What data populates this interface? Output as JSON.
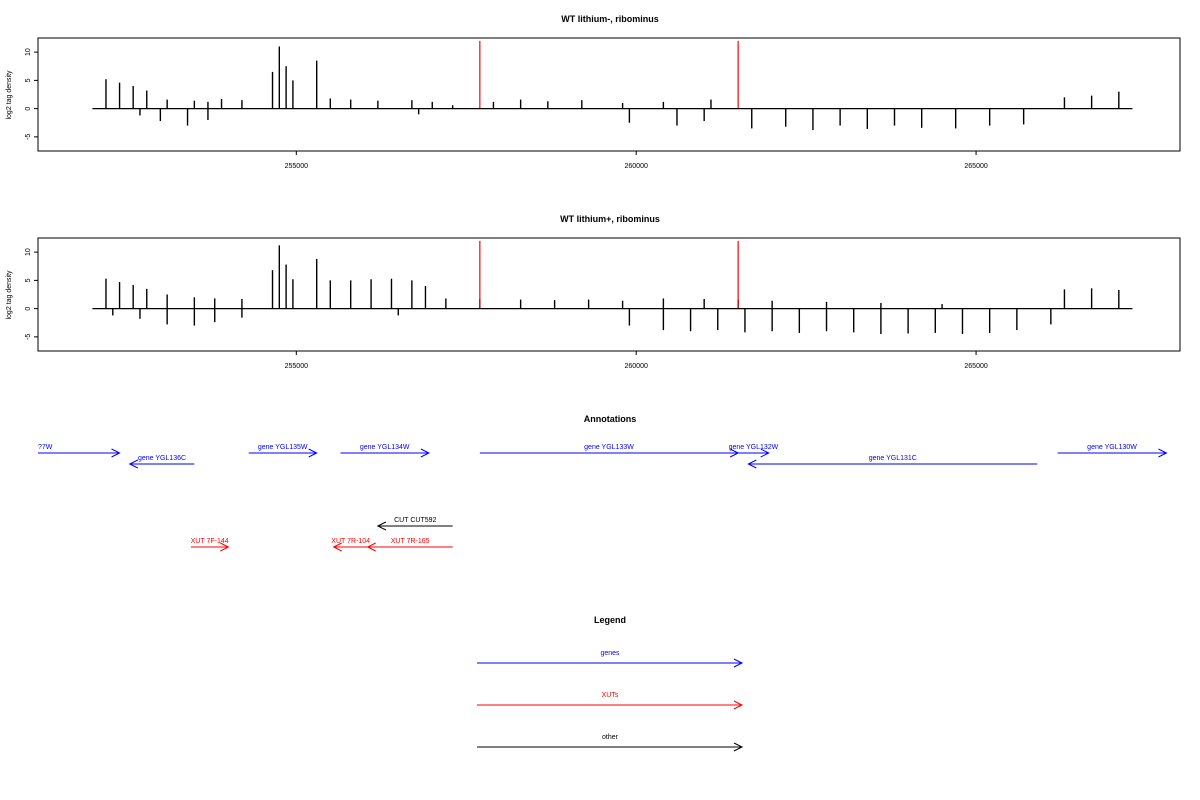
{
  "chart_data": [
    {
      "type": "bar",
      "title": "WT lithium-, ribominus",
      "xlabel": "",
      "ylabel": "log2 tag density",
      "xlim": [
        251200,
        268000
      ],
      "ylim": [
        -7.5,
        12.5
      ],
      "xticks": [
        255000,
        260000,
        265000
      ],
      "xtick_labels": [
        "255000",
        "260000",
        "265000"
      ],
      "yticks": [
        -5,
        0,
        5,
        10
      ],
      "ytick_labels": [
        "-5",
        "0",
        "5",
        "10"
      ],
      "marker_lines_x": [
        257700,
        261500
      ],
      "series": [
        {
          "values": [
            [
              252200,
              5.2
            ],
            [
              252400,
              4.6
            ],
            [
              252600,
              4.0
            ],
            [
              252800,
              3.2
            ],
            [
              253100,
              1.6
            ],
            [
              253500,
              1.4
            ],
            [
              253700,
              1.2
            ],
            [
              253900,
              1.7
            ],
            [
              254200,
              1.5
            ],
            [
              254650,
              6.5
            ],
            [
              254750,
              11.0
            ],
            [
              254850,
              7.5
            ],
            [
              254950,
              5.0
            ],
            [
              255300,
              8.5
            ],
            [
              255500,
              1.8
            ],
            [
              255800,
              1.6
            ],
            [
              256200,
              1.4
            ],
            [
              256700,
              1.5
            ],
            [
              257000,
              1.2
            ],
            [
              257300,
              0.6
            ],
            [
              257900,
              1.2
            ],
            [
              258300,
              1.6
            ],
            [
              258700,
              1.3
            ],
            [
              259200,
              1.5
            ],
            [
              259800,
              1.0
            ],
            [
              260400,
              1.2
            ],
            [
              261100,
              1.6
            ],
            [
              266300,
              2.0
            ],
            [
              266700,
              2.3
            ],
            [
              267100,
              3.0
            ],
            [
              252700,
              -1.2
            ],
            [
              253000,
              -2.2
            ],
            [
              253400,
              -3.0
            ],
            [
              253700,
              -2.0
            ],
            [
              256800,
              -1.0
            ],
            [
              259900,
              -2.5
            ],
            [
              260600,
              -3.0
            ],
            [
              261000,
              -2.2
            ],
            [
              261700,
              -3.5
            ],
            [
              262200,
              -3.2
            ],
            [
              262600,
              -3.8
            ],
            [
              263000,
              -3.0
            ],
            [
              263400,
              -3.6
            ],
            [
              263800,
              -3.0
            ],
            [
              264200,
              -3.4
            ],
            [
              264700,
              -3.5
            ],
            [
              265200,
              -3.0
            ],
            [
              265700,
              -2.8
            ]
          ]
        }
      ]
    },
    {
      "type": "bar",
      "title": "WT lithium+, ribominus",
      "xlabel": "",
      "ylabel": "log2 tag density",
      "xlim": [
        251200,
        268000
      ],
      "ylim": [
        -7.5,
        12.5
      ],
      "xticks": [
        255000,
        260000,
        265000
      ],
      "xtick_labels": [
        "255000",
        "260000",
        "265000"
      ],
      "yticks": [
        -5,
        0,
        5,
        10
      ],
      "ytick_labels": [
        "-5",
        "0",
        "5",
        "10"
      ],
      "marker_lines_x": [
        257700,
        261500
      ],
      "series": [
        {
          "values": [
            [
              252200,
              5.3
            ],
            [
              252400,
              4.7
            ],
            [
              252600,
              4.2
            ],
            [
              252800,
              3.5
            ],
            [
              253100,
              2.5
            ],
            [
              253500,
              2.0
            ],
            [
              253800,
              1.8
            ],
            [
              254200,
              1.7
            ],
            [
              254650,
              6.8
            ],
            [
              254750,
              11.2
            ],
            [
              254850,
              7.8
            ],
            [
              254950,
              5.2
            ],
            [
              255300,
              8.8
            ],
            [
              255500,
              5.0
            ],
            [
              255800,
              5.0
            ],
            [
              256100,
              5.2
            ],
            [
              256400,
              5.3
            ],
            [
              256700,
              5.0
            ],
            [
              256900,
              4.0
            ],
            [
              257200,
              1.8
            ],
            [
              257700,
              1.7
            ],
            [
              258300,
              1.6
            ],
            [
              258800,
              1.5
            ],
            [
              259300,
              1.6
            ],
            [
              259800,
              1.4
            ],
            [
              260400,
              1.8
            ],
            [
              261000,
              1.7
            ],
            [
              261500,
              1.6
            ],
            [
              262000,
              1.4
            ],
            [
              262800,
              1.2
            ],
            [
              263600,
              1.0
            ],
            [
              264500,
              0.8
            ],
            [
              266300,
              3.4
            ],
            [
              266700,
              3.6
            ],
            [
              267100,
              3.3
            ],
            [
              252300,
              -1.2
            ],
            [
              252700,
              -1.8
            ],
            [
              253100,
              -2.8
            ],
            [
              253500,
              -3.0
            ],
            [
              253800,
              -2.4
            ],
            [
              254200,
              -1.6
            ],
            [
              256500,
              -1.2
            ],
            [
              259900,
              -3.0
            ],
            [
              260400,
              -3.8
            ],
            [
              260800,
              -4.0
            ],
            [
              261200,
              -3.8
            ],
            [
              261600,
              -4.2
            ],
            [
              262000,
              -4.0
            ],
            [
              262400,
              -4.3
            ],
            [
              262800,
              -4.0
            ],
            [
              263200,
              -4.2
            ],
            [
              263600,
              -4.5
            ],
            [
              264000,
              -4.4
            ],
            [
              264400,
              -4.3
            ],
            [
              264800,
              -4.5
            ],
            [
              265200,
              -4.3
            ],
            [
              265600,
              -3.8
            ],
            [
              266100,
              -2.8
            ]
          ]
        }
      ]
    }
  ],
  "annotations": {
    "title": "Annotations",
    "genes_row1": [
      {
        "label": "?7W",
        "x1": 251200,
        "x2": 252400,
        "dir": "right"
      },
      {
        "label": "gene YGL135W",
        "x1": 254300,
        "x2": 255300,
        "dir": "right"
      },
      {
        "label": "gene YGL134W",
        "x1": 255650,
        "x2": 256950,
        "dir": "right"
      },
      {
        "label": "gene YGL133W",
        "x1": 257700,
        "x2": 261500,
        "dir": "right"
      },
      {
        "label": "gene YGL132W",
        "x1": 261500,
        "x2": 261950,
        "dir": "right"
      },
      {
        "label": "gene YGL130W",
        "x1": 266200,
        "x2": 267800,
        "dir": "right"
      }
    ],
    "genes_row2": [
      {
        "label": "gene YGL136C",
        "x1": 252550,
        "x2": 253500,
        "dir": "left"
      },
      {
        "label": "gene YGL131C",
        "x1": 261650,
        "x2": 265900,
        "dir": "left"
      }
    ],
    "other_row": [
      {
        "label": "CUT CUT592",
        "x1": 256200,
        "x2": 257300,
        "dir": "left"
      }
    ],
    "xuts_row": [
      {
        "label": "XUT 7F-144",
        "x1": 253450,
        "x2": 254000,
        "dir": "right"
      },
      {
        "label": "XUT 7R-104",
        "x1": 255550,
        "x2": 256050,
        "dir": "left"
      },
      {
        "label": "XUT 7R-165",
        "x1": 256050,
        "x2": 257300,
        "dir": "left"
      }
    ]
  },
  "legend": {
    "title": "Legend",
    "items": [
      {
        "label": "genes",
        "color": "#0000ff"
      },
      {
        "label": "XUTs",
        "color": "#ff0000"
      },
      {
        "label": "other",
        "color": "#000000"
      }
    ]
  },
  "colors": {
    "gene": "#0000ff",
    "xut": "#ff0000",
    "other": "#000000",
    "marker": "#ff0000",
    "bars": "#000000"
  }
}
